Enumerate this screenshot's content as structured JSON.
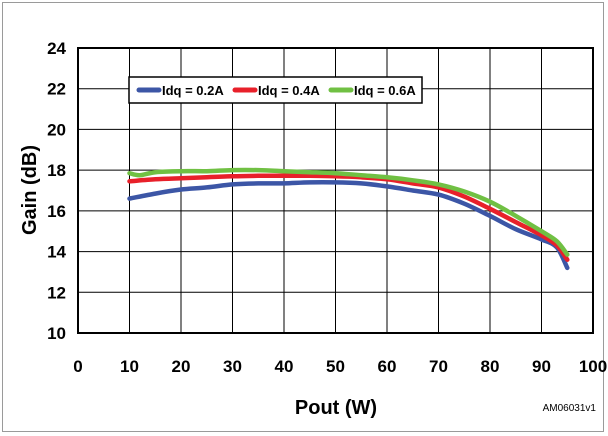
{
  "chart_data": {
    "type": "line",
    "title": "",
    "xlabel": "Pout (W)",
    "ylabel": "Gain (dB)",
    "xlim": [
      0,
      100
    ],
    "ylim": [
      10,
      24
    ],
    "x_ticks": [
      "0",
      "10",
      "20",
      "30",
      "40",
      "50",
      "60",
      "70",
      "80",
      "90",
      "100"
    ],
    "y_ticks": [
      "10",
      "12",
      "14",
      "16",
      "18",
      "20",
      "22",
      "24"
    ],
    "grid": true,
    "legend_position": "top-left",
    "annotation": "AM06031v1",
    "series": [
      {
        "name": "Idq = 0.2A",
        "color": "#3c56a6",
        "points": [
          [
            10,
            16.6
          ],
          [
            15,
            16.85
          ],
          [
            20,
            17.05
          ],
          [
            25,
            17.15
          ],
          [
            30,
            17.3
          ],
          [
            35,
            17.35
          ],
          [
            40,
            17.35
          ],
          [
            45,
            17.4
          ],
          [
            50,
            17.4
          ],
          [
            55,
            17.35
          ],
          [
            60,
            17.2
          ],
          [
            65,
            17.0
          ],
          [
            70,
            16.8
          ],
          [
            75,
            16.35
          ],
          [
            80,
            15.75
          ],
          [
            85,
            15.1
          ],
          [
            90,
            14.6
          ],
          [
            93,
            14.2
          ],
          [
            95,
            13.2
          ]
        ]
      },
      {
        "name": "Idq = 0.4A",
        "color": "#e8202a",
        "points": [
          [
            10,
            17.45
          ],
          [
            15,
            17.55
          ],
          [
            20,
            17.6
          ],
          [
            25,
            17.65
          ],
          [
            30,
            17.7
          ],
          [
            35,
            17.72
          ],
          [
            40,
            17.72
          ],
          [
            45,
            17.72
          ],
          [
            50,
            17.7
          ],
          [
            55,
            17.65
          ],
          [
            60,
            17.55
          ],
          [
            65,
            17.35
          ],
          [
            70,
            17.15
          ],
          [
            75,
            16.7
          ],
          [
            80,
            16.1
          ],
          [
            85,
            15.45
          ],
          [
            90,
            14.8
          ],
          [
            93,
            14.3
          ],
          [
            95,
            13.6
          ]
        ]
      },
      {
        "name": "Idq = 0.6A",
        "color": "#70c043",
        "points": [
          [
            10,
            17.85
          ],
          [
            12,
            17.75
          ],
          [
            15,
            17.9
          ],
          [
            20,
            17.95
          ],
          [
            25,
            17.95
          ],
          [
            30,
            18.0
          ],
          [
            35,
            18.0
          ],
          [
            40,
            17.95
          ],
          [
            45,
            17.9
          ],
          [
            50,
            17.85
          ],
          [
            55,
            17.75
          ],
          [
            60,
            17.65
          ],
          [
            65,
            17.5
          ],
          [
            70,
            17.3
          ],
          [
            75,
            16.95
          ],
          [
            80,
            16.45
          ],
          [
            85,
            15.75
          ],
          [
            90,
            15.0
          ],
          [
            93,
            14.5
          ],
          [
            95,
            13.85
          ]
        ]
      }
    ]
  }
}
